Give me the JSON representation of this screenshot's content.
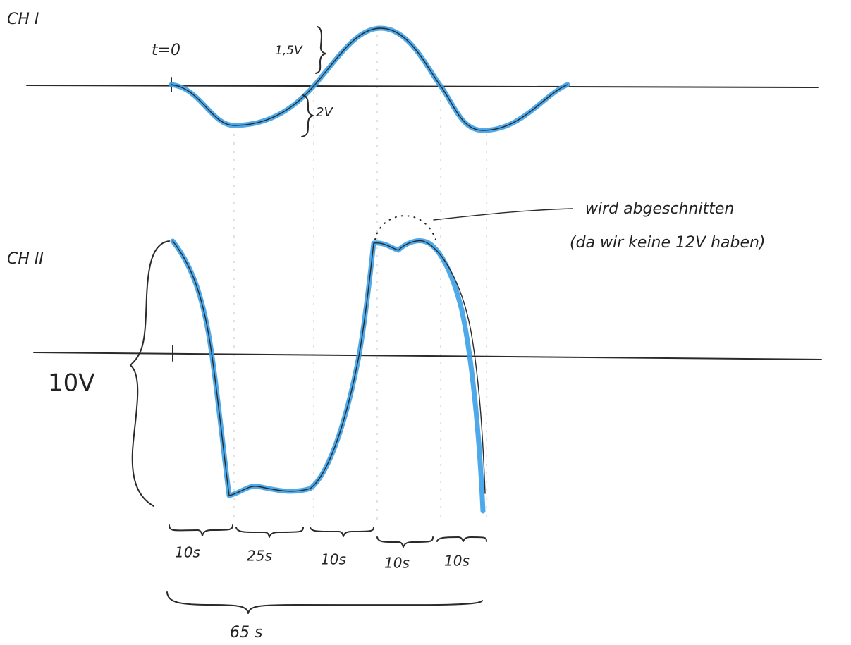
{
  "channel1": {
    "label": "CH I",
    "start_label": "t=0",
    "upper_amplitude": "1,5V",
    "lower_amplitude": "2V"
  },
  "channel2": {
    "label": "CH II",
    "amplitude": "10V"
  },
  "annotation": {
    "line1": "wird abgeschnitten",
    "line2": "(da wir keine 12V haben)"
  },
  "segments": [
    "10s",
    "25s",
    "10s",
    "10s",
    "10s"
  ],
  "total": "65 s"
}
